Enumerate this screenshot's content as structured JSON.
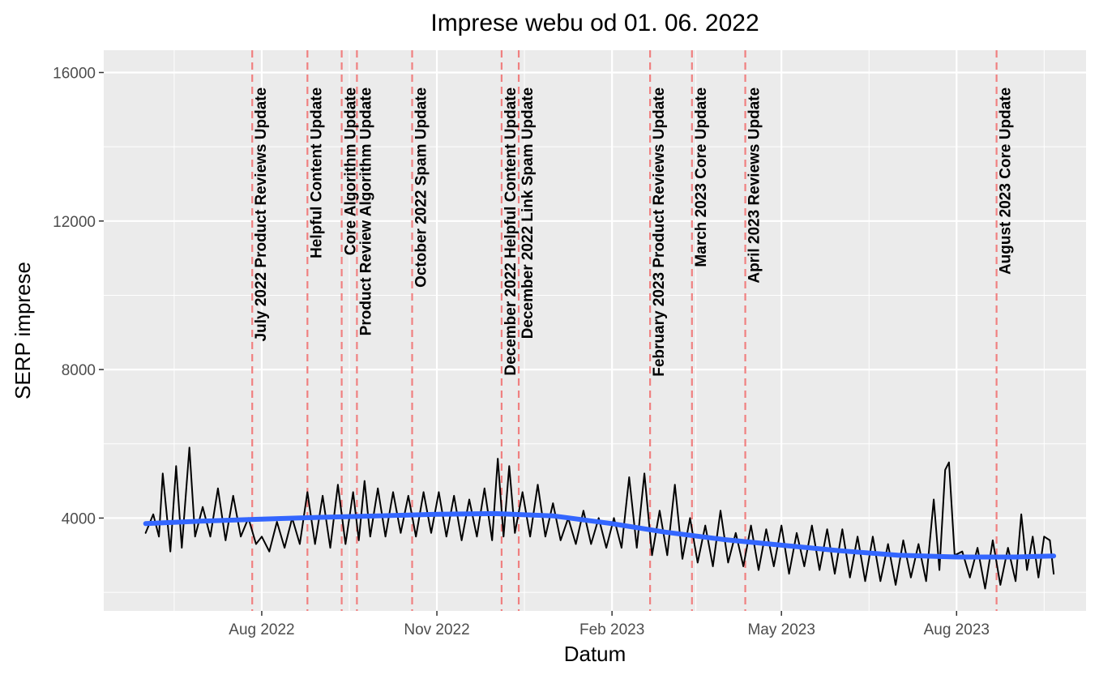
{
  "chart_data": {
    "type": "line",
    "title": "Imprese webu od 01. 06. 2022",
    "xlabel": "Datum",
    "ylabel": "SERP imprese",
    "x_start": "2022-06-01",
    "x_end": "2023-09-21",
    "xlim": [
      "2022-05-10",
      "2023-10-08"
    ],
    "ylim": [
      1500,
      16600
    ],
    "y_ticks": [
      4000,
      8000,
      12000,
      16000
    ],
    "y_tick_labels": [
      "4000",
      "8000",
      "12000",
      "16000"
    ],
    "x_ticks": [
      "2022-08-01",
      "2022-11-01",
      "2023-02-01",
      "2023-05-01",
      "2023-08-01"
    ],
    "x_tick_labels": [
      "Aug 2022",
      "Nov 2022",
      "Feb 2023",
      "May 2023",
      "Aug 2023"
    ],
    "grid": true,
    "background": "#EBEBEB",
    "series": [
      {
        "kind": "daily",
        "color": "#000000",
        "points": [
          [
            "2022-06-01",
            3600
          ],
          [
            "2022-06-05",
            4100
          ],
          [
            "2022-06-08",
            3500
          ],
          [
            "2022-06-10",
            5200
          ],
          [
            "2022-06-14",
            3100
          ],
          [
            "2022-06-17",
            5400
          ],
          [
            "2022-06-20",
            3200
          ],
          [
            "2022-06-24",
            5900
          ],
          [
            "2022-06-27",
            3500
          ],
          [
            "2022-07-01",
            4300
          ],
          [
            "2022-07-05",
            3500
          ],
          [
            "2022-07-09",
            4800
          ],
          [
            "2022-07-13",
            3400
          ],
          [
            "2022-07-17",
            4600
          ],
          [
            "2022-07-21",
            3500
          ],
          [
            "2022-07-25",
            4000
          ],
          [
            "2022-07-29",
            3300
          ],
          [
            "2022-08-01",
            3500
          ],
          [
            "2022-08-05",
            3100
          ],
          [
            "2022-08-09",
            3900
          ],
          [
            "2022-08-13",
            3200
          ],
          [
            "2022-08-17",
            4000
          ],
          [
            "2022-08-21",
            3300
          ],
          [
            "2022-08-25",
            4700
          ],
          [
            "2022-08-29",
            3300
          ],
          [
            "2022-09-02",
            4600
          ],
          [
            "2022-09-06",
            3200
          ],
          [
            "2022-09-10",
            4900
          ],
          [
            "2022-09-14",
            3300
          ],
          [
            "2022-09-18",
            4700
          ],
          [
            "2022-09-21",
            3400
          ],
          [
            "2022-09-24",
            5000
          ],
          [
            "2022-09-27",
            3500
          ],
          [
            "2022-10-01",
            4800
          ],
          [
            "2022-10-05",
            3500
          ],
          [
            "2022-10-09",
            4700
          ],
          [
            "2022-10-13",
            3600
          ],
          [
            "2022-10-17",
            4600
          ],
          [
            "2022-10-21",
            3500
          ],
          [
            "2022-10-25",
            4700
          ],
          [
            "2022-10-29",
            3600
          ],
          [
            "2022-11-02",
            4700
          ],
          [
            "2022-11-06",
            3500
          ],
          [
            "2022-11-10",
            4600
          ],
          [
            "2022-11-14",
            3400
          ],
          [
            "2022-11-18",
            4500
          ],
          [
            "2022-11-22",
            3500
          ],
          [
            "2022-11-26",
            4800
          ],
          [
            "2022-11-30",
            3400
          ],
          [
            "2022-12-03",
            5600
          ],
          [
            "2022-12-06",
            3500
          ],
          [
            "2022-12-09",
            5400
          ],
          [
            "2022-12-12",
            3600
          ],
          [
            "2022-12-16",
            4700
          ],
          [
            "2022-12-20",
            3500
          ],
          [
            "2022-12-24",
            4900
          ],
          [
            "2022-12-28",
            3500
          ],
          [
            "2023-01-01",
            4400
          ],
          [
            "2023-01-05",
            3400
          ],
          [
            "2023-01-09",
            4000
          ],
          [
            "2023-01-13",
            3300
          ],
          [
            "2023-01-17",
            4200
          ],
          [
            "2023-01-21",
            3300
          ],
          [
            "2023-01-25",
            4000
          ],
          [
            "2023-01-29",
            3200
          ],
          [
            "2023-02-02",
            4000
          ],
          [
            "2023-02-06",
            3200
          ],
          [
            "2023-02-10",
            5100
          ],
          [
            "2023-02-14",
            3200
          ],
          [
            "2023-02-18",
            5200
          ],
          [
            "2023-02-22",
            3000
          ],
          [
            "2023-02-26",
            4200
          ],
          [
            "2023-03-02",
            3000
          ],
          [
            "2023-03-06",
            4900
          ],
          [
            "2023-03-10",
            2900
          ],
          [
            "2023-03-14",
            4000
          ],
          [
            "2023-03-18",
            2800
          ],
          [
            "2023-03-22",
            3800
          ],
          [
            "2023-03-26",
            2700
          ],
          [
            "2023-03-30",
            4200
          ],
          [
            "2023-04-03",
            2800
          ],
          [
            "2023-04-07",
            3600
          ],
          [
            "2023-04-11",
            2700
          ],
          [
            "2023-04-15",
            3800
          ],
          [
            "2023-04-19",
            2600
          ],
          [
            "2023-04-23",
            3700
          ],
          [
            "2023-04-27",
            2700
          ],
          [
            "2023-05-01",
            3800
          ],
          [
            "2023-05-05",
            2500
          ],
          [
            "2023-05-09",
            3600
          ],
          [
            "2023-05-13",
            2700
          ],
          [
            "2023-05-17",
            3800
          ],
          [
            "2023-05-21",
            2600
          ],
          [
            "2023-05-25",
            3700
          ],
          [
            "2023-05-29",
            2500
          ],
          [
            "2023-06-02",
            3700
          ],
          [
            "2023-06-06",
            2400
          ],
          [
            "2023-06-10",
            3500
          ],
          [
            "2023-06-14",
            2300
          ],
          [
            "2023-06-18",
            3500
          ],
          [
            "2023-06-22",
            2300
          ],
          [
            "2023-06-26",
            3300
          ],
          [
            "2023-06-30",
            2200
          ],
          [
            "2023-07-04",
            3400
          ],
          [
            "2023-07-08",
            2400
          ],
          [
            "2023-07-12",
            3300
          ],
          [
            "2023-07-16",
            2300
          ],
          [
            "2023-07-20",
            4500
          ],
          [
            "2023-07-23",
            2600
          ],
          [
            "2023-07-26",
            5300
          ],
          [
            "2023-07-28",
            5500
          ],
          [
            "2023-07-31",
            3000
          ],
          [
            "2023-08-04",
            3100
          ],
          [
            "2023-08-08",
            2400
          ],
          [
            "2023-08-12",
            3200
          ],
          [
            "2023-08-16",
            2100
          ],
          [
            "2023-08-20",
            3400
          ],
          [
            "2023-08-24",
            2200
          ],
          [
            "2023-08-28",
            3200
          ],
          [
            "2023-09-01",
            2300
          ],
          [
            "2023-09-04",
            4100
          ],
          [
            "2023-09-07",
            2600
          ],
          [
            "2023-09-10",
            3500
          ],
          [
            "2023-09-13",
            2400
          ],
          [
            "2023-09-16",
            3500
          ],
          [
            "2023-09-19",
            3400
          ],
          [
            "2023-09-21",
            2500
          ]
        ]
      },
      {
        "kind": "smooth",
        "color": "#3366FF",
        "points": [
          [
            "2022-06-01",
            3850
          ],
          [
            "2022-07-01",
            3920
          ],
          [
            "2022-08-01",
            3970
          ],
          [
            "2022-09-01",
            4020
          ],
          [
            "2022-10-01",
            4060
          ],
          [
            "2022-11-01",
            4100
          ],
          [
            "2022-12-01",
            4120
          ],
          [
            "2023-01-01",
            4060
          ],
          [
            "2023-02-01",
            3850
          ],
          [
            "2023-03-01",
            3620
          ],
          [
            "2023-04-01",
            3420
          ],
          [
            "2023-05-01",
            3270
          ],
          [
            "2023-06-01",
            3120
          ],
          [
            "2023-07-01",
            3000
          ],
          [
            "2023-08-01",
            2950
          ],
          [
            "2023-09-01",
            2950
          ],
          [
            "2023-09-21",
            2980
          ]
        ]
      }
    ],
    "annotations": [
      {
        "date": "2022-07-27",
        "label": "July 2022 Product Reviews Update"
      },
      {
        "date": "2022-08-25",
        "label": "Helpful Content Update"
      },
      {
        "date": "2022-09-12",
        "label": "Core Algorithm Update"
      },
      {
        "date": "2022-09-20",
        "label": "Product Review Algorithm Update"
      },
      {
        "date": "2022-10-19",
        "label": "October 2022 Spam Update"
      },
      {
        "date": "2022-12-05",
        "label": "December 2022 Helpful Content Update"
      },
      {
        "date": "2022-12-14",
        "label": "December 2022 Link Spam Update"
      },
      {
        "date": "2023-02-21",
        "label": "February 2023 Product Reviews Update"
      },
      {
        "date": "2023-03-15",
        "label": "March 2023 Core Update"
      },
      {
        "date": "2023-04-12",
        "label": "April 2023 Reviews Update"
      },
      {
        "date": "2023-08-22",
        "label": "August 2023 Core Update"
      }
    ],
    "annotation_line_color": "#F08080"
  }
}
